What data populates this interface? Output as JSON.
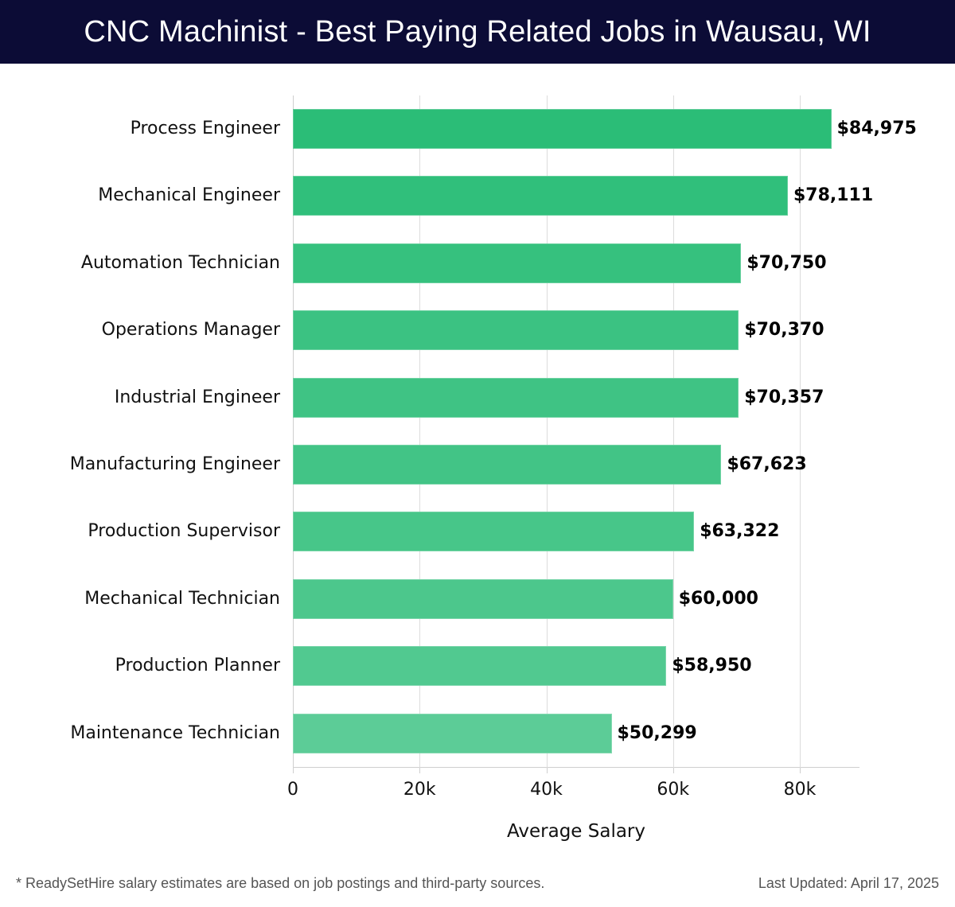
{
  "header": {
    "title": "CNC Machinist - Best Paying Related Jobs in Wausau, WI"
  },
  "footer": {
    "note": "* ReadySetHire salary estimates are based on job postings and third-party sources.",
    "updated": "Last Updated: April 17, 2025"
  },
  "colors": {
    "header_bg": "#0c0c36",
    "bar_top": "#2bbd77",
    "bar_bottom": "#5ccc97"
  },
  "chart_data": {
    "type": "bar",
    "orientation": "horizontal",
    "title": "CNC Machinist - Best Paying Related Jobs in Wausau, WI",
    "xlabel": "Average Salary",
    "ylabel": "",
    "xlim": [
      0,
      89500
    ],
    "grid": true,
    "legend": null,
    "x_ticks": [
      "0",
      "20k",
      "40k",
      "60k",
      "80k"
    ],
    "x_tick_values": [
      0,
      20000,
      40000,
      60000,
      80000
    ],
    "categories": [
      "Process Engineer",
      "Mechanical Engineer",
      "Automation Technician",
      "Operations Manager",
      "Industrial Engineer",
      "Manufacturing Engineer",
      "Production Supervisor",
      "Mechanical Technician",
      "Production Planner",
      "Maintenance Technician"
    ],
    "values": [
      84975,
      78111,
      70750,
      70370,
      70357,
      67623,
      63322,
      60000,
      58950,
      50299
    ],
    "value_labels": [
      "$84,975",
      "$78,111",
      "$70,750",
      "$70,370",
      "$70,357",
      "$67,623",
      "$63,322",
      "$60,000",
      "$58,950",
      "$50,299"
    ],
    "bar_colors": [
      "#2bbd77",
      "#30bf7b",
      "#36c17e",
      "#3bc282",
      "#3fc384",
      "#42c486",
      "#47c689",
      "#4cc78c",
      "#51c990",
      "#5ccc97"
    ]
  }
}
